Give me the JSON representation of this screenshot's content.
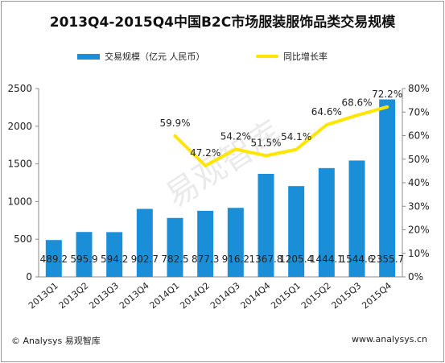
{
  "title": "2013Q4-2015Q4中国B2C市场服装服饰品类交易规模",
  "footer": {
    "left": "© Analysys 易观智库",
    "right": "www.analysys.cn"
  },
  "watermark": "易观智库",
  "colors": {
    "bar": "#1a8fd8",
    "line": "#ffe600",
    "axis": "#888888"
  },
  "chart_data": {
    "type": "bar",
    "title": "2013Q4-2015Q4中国B2C市场服装服饰品类交易规模",
    "categories": [
      "2013Q1",
      "2013Q2",
      "2013Q3",
      "2013Q4",
      "2014Q1",
      "2014Q2",
      "2014Q3",
      "2014Q4",
      "2015Q1",
      "2015Q2",
      "2015Q3",
      "2015Q4"
    ],
    "series": [
      {
        "name": "交易规模（亿元 人民币）",
        "type": "bar",
        "axis": "left",
        "values": [
          489.2,
          595.9,
          594.2,
          902.7,
          782.5,
          877.3,
          916.2,
          1367.8,
          1205.4,
          1444.1,
          1544.6,
          2355.7
        ],
        "labels": [
          "489.2",
          "595.9",
          "594.2",
          "902.7",
          "782.5",
          "877.3",
          "916.2",
          "1367.8",
          "1205.4",
          "1444.1",
          "1544.6",
          "2355.7"
        ]
      },
      {
        "name": "同比增长率",
        "type": "line",
        "axis": "right",
        "values": [
          null,
          null,
          null,
          null,
          59.9,
          47.2,
          54.2,
          51.5,
          54.1,
          64.6,
          68.6,
          72.2
        ],
        "labels": [
          null,
          null,
          null,
          null,
          "59.9%",
          "47.2%",
          "54.2%",
          "51.5%",
          "54.1%",
          "64.6%",
          "68.6%",
          "72.2%"
        ]
      }
    ],
    "ylim_left": [
      0,
      2500
    ],
    "yticks_left": [
      "0",
      "500",
      "1000",
      "1500",
      "2000",
      "2500"
    ],
    "ylim_right": [
      0,
      80
    ],
    "yticks_right": [
      "0%",
      "10%",
      "20%",
      "30%",
      "40%",
      "50%",
      "60%",
      "70%",
      "80%"
    ],
    "legend_position": "top",
    "grid": false
  }
}
